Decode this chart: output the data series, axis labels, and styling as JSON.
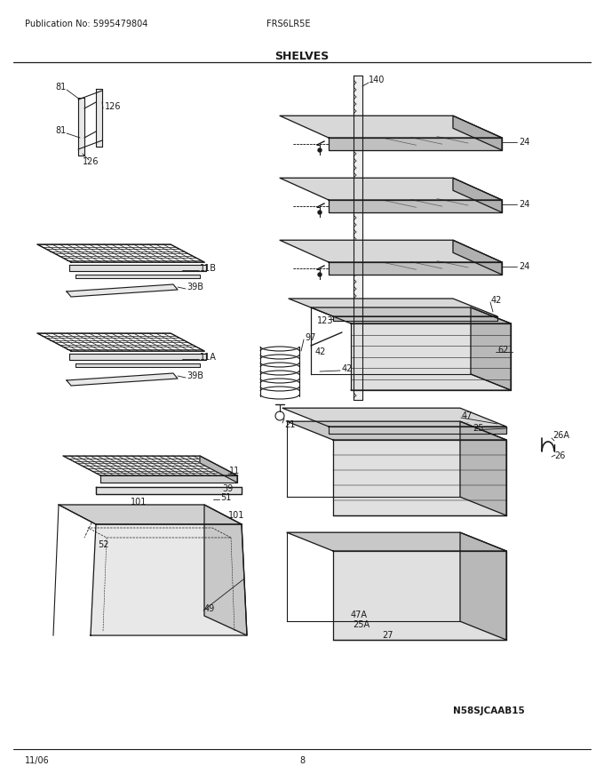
{
  "title": "SHELVES",
  "pub_no": "Publication No: 5995479804",
  "model": "FRS6LR5E",
  "date": "11/06",
  "page": "8",
  "diagram_id": "N58SJCAAB15",
  "bg_color": "#ffffff",
  "line_color": "#1a1a1a",
  "fill_light": "#e8e8e8",
  "fill_mid": "#d0d0d0",
  "fill_dark": "#b8b8b8",
  "fig_width": 6.8,
  "fig_height": 8.8,
  "dpi": 100
}
